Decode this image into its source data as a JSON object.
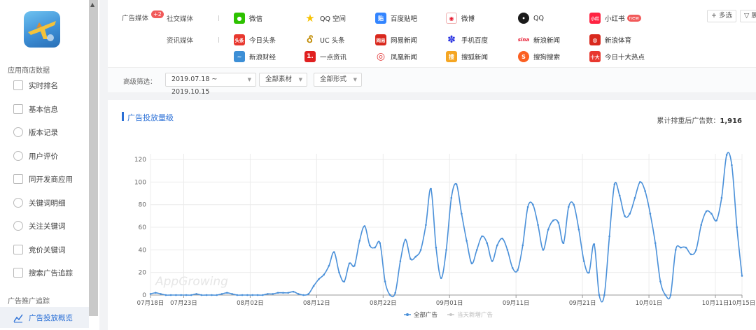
{
  "sidebar": {
    "section1_title": "应用商店数据",
    "items": [
      {
        "label": "实时排名"
      },
      {
        "label": "基本信息"
      },
      {
        "label": "版本记录"
      },
      {
        "label": "用户评价"
      },
      {
        "label": "同开发商应用"
      },
      {
        "label": "关键词明细"
      },
      {
        "label": "关注关键词"
      },
      {
        "label": "竞价关键词"
      },
      {
        "label": "搜索广告追踪"
      }
    ],
    "section2_title": "广告推广追踪",
    "active_item": {
      "label": "广告投放概览"
    }
  },
  "media": {
    "ad_media_label": "广告媒体",
    "ad_media_badge": "+2",
    "social_label": "社交媒体",
    "news_label": "资讯媒体",
    "social_items": [
      {
        "label": "微信",
        "icon": "wechat-icon",
        "color": "#2dc100"
      },
      {
        "label": "QQ 空间",
        "icon": "qzone-star-icon",
        "color": "#f7c200"
      },
      {
        "label": "百度贴吧",
        "icon": "tieba-icon",
        "color": "#3385ff"
      },
      {
        "label": "微博",
        "icon": "weibo-icon",
        "color": "#e6162d"
      },
      {
        "label": "QQ",
        "icon": "qq-penguin-icon",
        "color": "#1a1a1a"
      },
      {
        "label": "小红书",
        "icon": "xiaohongshu-icon",
        "color": "#ff2442",
        "badge": "new"
      }
    ],
    "news_row1": [
      {
        "label": "今日头条",
        "icon": "toutiao-icon",
        "color": "#e8382f",
        "glyph": "头条"
      },
      {
        "label": "UC 头条",
        "icon": "uc-squirrel-icon",
        "color": "#f39800"
      },
      {
        "label": "网易新闻",
        "icon": "netease-news-icon",
        "color": "#d9281d",
        "glyph": "网易"
      },
      {
        "label": "手机百度",
        "icon": "baidu-paw-icon",
        "color": "#2932e1"
      },
      {
        "label": "新浪新闻",
        "icon": "sina-icon",
        "color": "#e6162d",
        "glyph": "sina"
      },
      {
        "label": "新浪体育",
        "icon": "sina-sports-icon",
        "color": "#d9281d"
      }
    ],
    "news_row2": [
      {
        "label": "新浪财经",
        "icon": "sina-finance-icon",
        "color": "#3d8fd6"
      },
      {
        "label": "一点资讯",
        "icon": "yidian-icon",
        "color": "#e02020",
        "glyph": "1."
      },
      {
        "label": "凤凰新闻",
        "icon": "ifeng-icon",
        "color": "#e23b3b"
      },
      {
        "label": "搜狐新闻",
        "icon": "sohu-news-icon",
        "color": "#f5a623",
        "glyph": "搜"
      },
      {
        "label": "搜狗搜索",
        "icon": "sogou-icon",
        "color": "#fb6022",
        "glyph": "S"
      },
      {
        "label": "今日十大热点",
        "icon": "top10-icon",
        "color": "#e8382f",
        "glyph": "十大"
      }
    ],
    "multi_select_label": "多选",
    "expand_label": "展"
  },
  "filter": {
    "label": "高级筛选：",
    "date_range": "2019.07.18 ~ 2019.10.15",
    "material": "全部素材",
    "format": "全部形式"
  },
  "panel": {
    "title": "广告投放量级",
    "summary_label": "累计排重后广告数：",
    "summary_value": "1,916"
  },
  "chart_data": {
    "type": "line",
    "title": "",
    "xlabel": "",
    "ylabel": "",
    "ylim": [
      0,
      125
    ],
    "yticks": [
      0,
      20,
      40,
      60,
      80,
      100,
      120
    ],
    "grid": true,
    "legend_position": "bottom",
    "watermark": "AppGrowing",
    "xtick_labels": [
      "07月18日",
      "07月23日",
      "08月02日",
      "08月12日",
      "08月22日",
      "09月01日",
      "09月11日",
      "09月21日",
      "10月01日",
      "10月11日",
      "10月15日"
    ],
    "xtick_days": [
      0,
      5,
      15,
      25,
      35,
      45,
      55,
      65,
      75,
      85,
      89
    ],
    "x_start": "2019-07-18",
    "x_end": "2019-10-15",
    "series": [
      {
        "name": "全部广告",
        "color": "#4a90d9",
        "visible": true,
        "values": [
          1,
          2,
          1,
          0,
          0,
          0,
          0,
          0,
          0,
          1,
          0,
          0,
          0,
          0,
          1,
          2,
          1,
          0,
          0,
          0,
          0,
          0,
          0,
          1,
          1,
          2,
          2,
          2,
          3,
          1,
          0,
          1,
          8,
          14,
          18,
          26,
          38,
          20,
          12,
          28,
          26,
          48,
          61,
          44,
          42,
          46,
          12,
          0,
          2,
          30,
          49,
          32,
          34,
          40,
          62,
          94,
          42,
          15,
          40,
          86,
          98,
          72,
          48,
          28,
          40,
          52,
          46,
          30,
          44,
          50,
          40,
          24,
          22,
          44,
          78,
          80,
          62,
          40,
          58,
          66,
          64,
          46,
          78,
          80,
          58,
          30,
          20,
          45,
          0,
          0,
          52,
          98,
          88,
          70,
          72,
          86,
          100,
          92,
          72,
          46,
          12,
          0,
          0,
          40,
          42,
          42,
          36,
          40,
          62,
          74,
          72,
          66,
          86,
          124,
          115,
          60,
          17
        ]
      },
      {
        "name": "当天新增广告",
        "color": "#c8c8c8",
        "visible": false,
        "values": []
      }
    ]
  }
}
